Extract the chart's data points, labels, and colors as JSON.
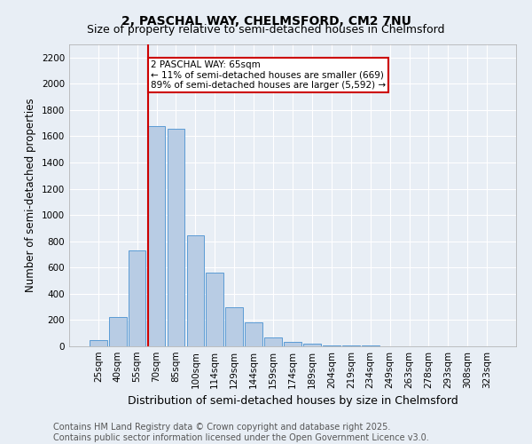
{
  "title": "2, PASCHAL WAY, CHELMSFORD, CM2 7NU",
  "subtitle": "Size of property relative to semi-detached houses in Chelmsford",
  "xlabel": "Distribution of semi-detached houses by size in Chelmsford",
  "ylabel": "Number of semi-detached properties",
  "categories": [
    "25sqm",
    "40sqm",
    "55sqm",
    "70sqm",
    "85sqm",
    "100sqm",
    "114sqm",
    "129sqm",
    "144sqm",
    "159sqm",
    "174sqm",
    "189sqm",
    "204sqm",
    "219sqm",
    "234sqm",
    "249sqm",
    "263sqm",
    "278sqm",
    "293sqm",
    "308sqm",
    "323sqm"
  ],
  "values": [
    45,
    225,
    730,
    1675,
    1660,
    845,
    560,
    300,
    185,
    70,
    35,
    20,
    10,
    5,
    5,
    2,
    0,
    0,
    0,
    0,
    0
  ],
  "bar_color": "#b8cce4",
  "bar_edge_color": "#5b9bd5",
  "red_line_index": 2.55,
  "annotation_title": "2 PASCHAL WAY: 65sqm",
  "annotation_line1": "← 11% of semi-detached houses are smaller (669)",
  "annotation_line2": "89% of semi-detached houses are larger (5,592) →",
  "annotation_box_color": "#ffffff",
  "annotation_box_edge": "#cc0000",
  "red_line_color": "#cc0000",
  "ylim": [
    0,
    2300
  ],
  "yticks": [
    0,
    200,
    400,
    600,
    800,
    1000,
    1200,
    1400,
    1600,
    1800,
    2000,
    2200
  ],
  "footer_line1": "Contains HM Land Registry data © Crown copyright and database right 2025.",
  "footer_line2": "Contains public sector information licensed under the Open Government Licence v3.0.",
  "background_color": "#e8eef5",
  "grid_color": "#ffffff",
  "title_fontsize": 10,
  "subtitle_fontsize": 9,
  "axis_label_fontsize": 8.5,
  "tick_fontsize": 7.5,
  "footer_fontsize": 7
}
